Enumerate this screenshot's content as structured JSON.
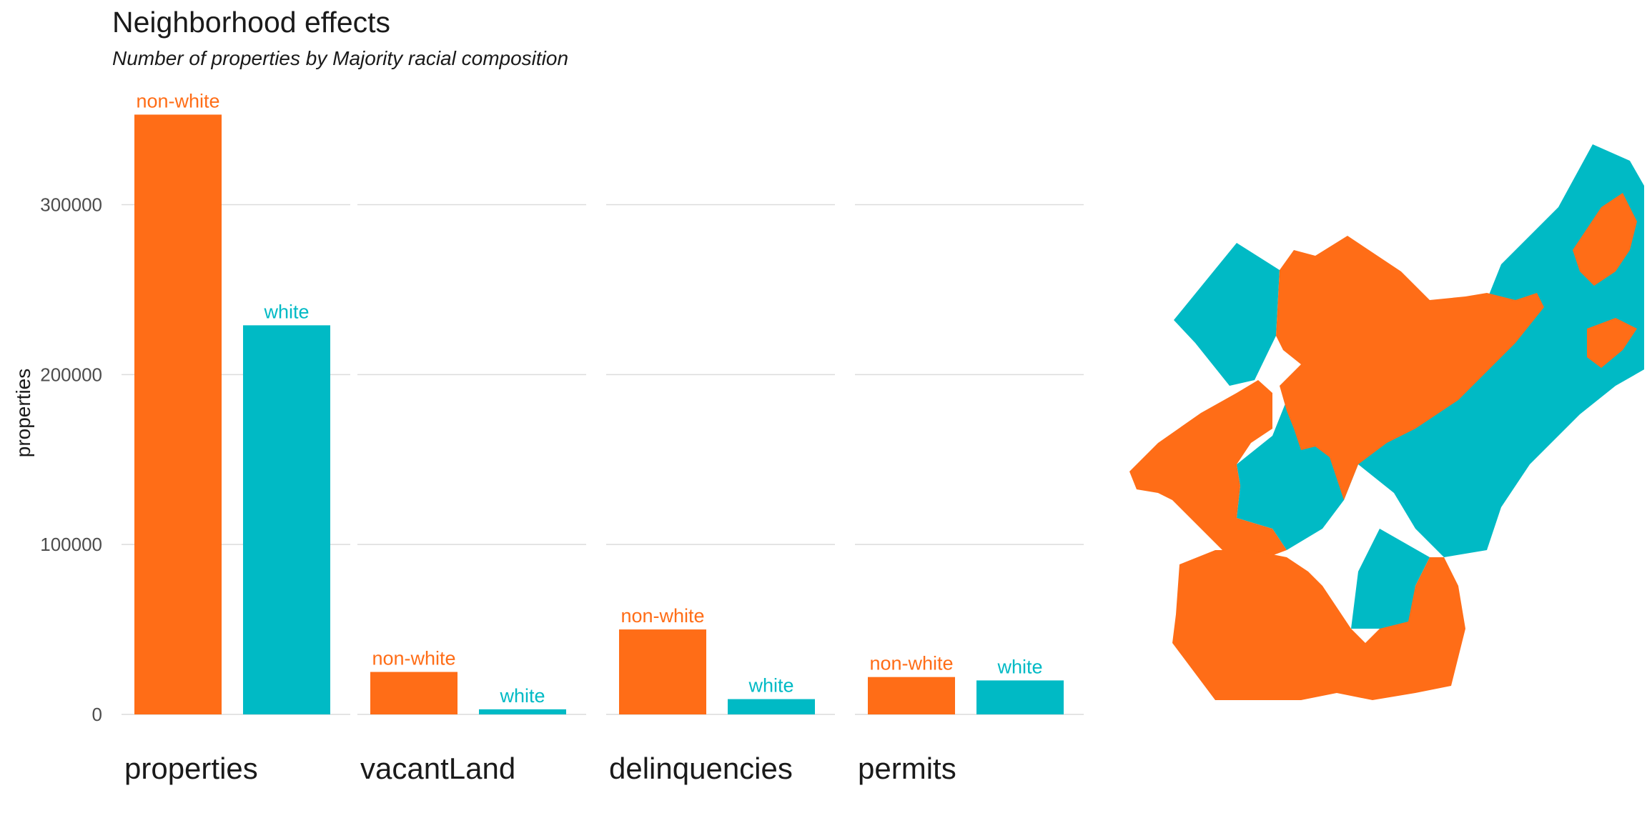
{
  "title": "Neighborhood effects",
  "subtitle": "Number of properties by Majority racial composition",
  "colors": {
    "non_white": "#FF6D17",
    "white": "#00BAC5"
  },
  "chart_data": {
    "type": "bar",
    "title": "Neighborhood effects",
    "subtitle": "Number of properties by Majority racial composition",
    "ylabel": "properties",
    "xlabel": "",
    "ylim": [
      0,
      370000
    ],
    "yticks": [
      0,
      100000,
      200000,
      300000
    ],
    "grid": true,
    "legend": "none",
    "facets": [
      "properties",
      "vacantLand",
      "delinquencies",
      "permits"
    ],
    "series": [
      {
        "name": "non-white",
        "color": "#FF6D17",
        "values": [
          353000,
          25000,
          50000,
          22000
        ]
      },
      {
        "name": "white",
        "color": "#00BAC5",
        "values": [
          229000,
          3000,
          9000,
          20000
        ]
      }
    ]
  },
  "map": {
    "colors": {
      "non_white": "#FF6D17",
      "white": "#00BAC5"
    }
  }
}
